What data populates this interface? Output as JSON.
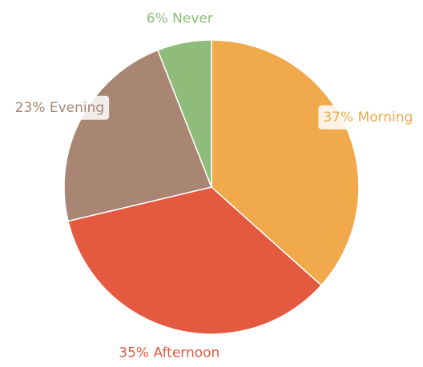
{
  "chart_data": {
    "type": "pie",
    "categories": [
      "Morning",
      "Afternoon",
      "Evening",
      "Never"
    ],
    "values": [
      37,
      35,
      23,
      6
    ],
    "value_labels": [
      "37%",
      "35%",
      "23%",
      "6%"
    ],
    "colors": [
      "#f0a94b",
      "#e45a41",
      "#a98574",
      "#8fbb7b"
    ]
  }
}
